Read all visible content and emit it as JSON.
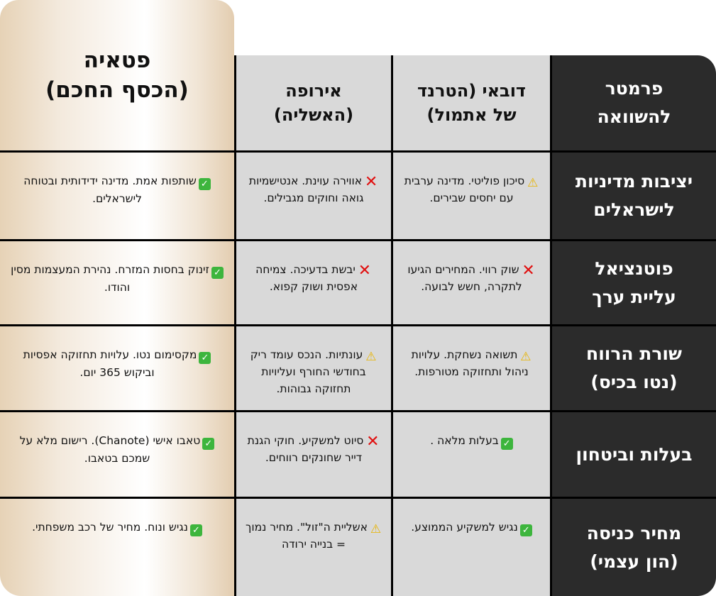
{
  "colors": {
    "dark": "#2b2b2b",
    "gray": "#d9d9d9",
    "gold": "#e6d2b6",
    "check": "#3db53d",
    "cross": "#e01010",
    "warning": "#f5c400"
  },
  "headers": {
    "param": [
      "פרמטר",
      "להשוואה"
    ],
    "dubai": [
      "דובאי (הטרנד",
      "של אתמול)"
    ],
    "europe": [
      "אירופה",
      "(האשליה)"
    ],
    "pattaya": [
      "פטאיה",
      "(הכסף החכם)"
    ]
  },
  "rows": [
    {
      "param": [
        "יציבות מדיניות",
        "לישראלים"
      ],
      "dubai": {
        "icon": "warning-icon",
        "text": "סיכון פוליטי. מדינה ערבית עם יחסים שבירים."
      },
      "europe": {
        "icon": "cross-icon",
        "text": "אווירה עוינת. אנטישמיות גואה וחוקים מגבילים."
      },
      "pattaya": {
        "icon": "check-icon",
        "text": "שותפות אמת. מדינה ידידותית ובטוחה לישראלים."
      }
    },
    {
      "param": [
        "פוטנציאל",
        "עליית ערך"
      ],
      "dubai": {
        "icon": "cross-icon",
        "text": "שוק רווי. המחירים הגיעו לתקרה, חשש לבועה."
      },
      "europe": {
        "icon": "cross-icon",
        "text": "יבשת בדעיכה. צמיחה אפסית ושוק קפוא."
      },
      "pattaya": {
        "icon": "check-icon",
        "text": "זינוק בחסות המזרח. נהירת המעצמות מסין והודו."
      }
    },
    {
      "param": [
        "שורת הרווח",
        "(נטו בכיס)"
      ],
      "dubai": {
        "icon": "warning-icon",
        "text": "תשואה נשחקת. עלויות ניהול ותחזוקה מטורפות."
      },
      "europe": {
        "icon": "warning-icon",
        "text": "עונתיות. הנכס עומד ריק בחודשי החורף ועליויות תחזוקה גבוהות."
      },
      "pattaya": {
        "icon": "check-icon",
        "text": "מקסימום נטו. עלויות תחזוקה אפסיות וביקוש 365 יום."
      }
    },
    {
      "param": [
        "בעלות וביטחון"
      ],
      "dubai": {
        "icon": "check-icon",
        "text": "בעלות מלאה ."
      },
      "europe": {
        "icon": "cross-icon",
        "text": "סיוט למשקיע. חוקי הגנת דייר שחונקים רווחים."
      },
      "pattaya": {
        "icon": "check-icon",
        "text": "טאבו אישי (Chanote). רישום מלא על שמכם בטאבו."
      }
    },
    {
      "param": [
        "מחיר כניסה",
        "(הון עצמי)"
      ],
      "dubai": {
        "icon": "check-icon",
        "text": "נגיש למשקיע הממוצע."
      },
      "europe": {
        "icon": "warning-icon",
        "text": "אשליית ה\"זול\". מחיר נמוך = בנייה ירודה"
      },
      "pattaya": {
        "icon": "check-icon",
        "text": "נגיש ונוח. מחיר של רכב משפחתי."
      }
    }
  ]
}
